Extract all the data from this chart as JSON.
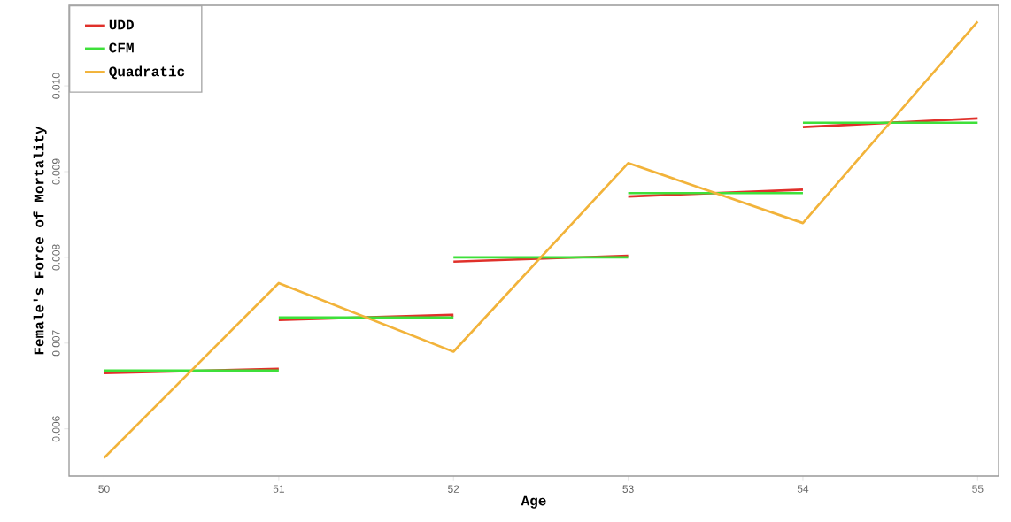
{
  "chart_data": {
    "type": "line",
    "xlabel": "Age",
    "ylabel": "Female's Force of Mortality",
    "xlim": [
      49.8,
      55.12
    ],
    "ylim": [
      0.00545,
      0.01094
    ],
    "xticks": [
      50,
      51,
      52,
      53,
      54,
      55
    ],
    "yticks": [
      {
        "value": 0.006,
        "label": "0.006"
      },
      {
        "value": 0.007,
        "label": "0.007"
      },
      {
        "value": 0.008,
        "label": "0.008"
      },
      {
        "value": 0.009,
        "label": "0.009"
      },
      {
        "value": 0.01,
        "label": "0.010"
      }
    ],
    "legend": "top left",
    "grid": false,
    "marker": "none",
    "line_style": "solid",
    "series": [
      {
        "name": "UDD",
        "color": "#e0302a",
        "x": [
          50,
          51
        ],
        "values": [
          0.00665,
          0.0067
        ]
      },
      {
        "color": "#e0302a",
        "x": [
          51,
          52
        ],
        "values": [
          0.00727,
          0.00733
        ]
      },
      {
        "color": "#e0302a",
        "x": [
          52,
          53
        ],
        "values": [
          0.00795,
          0.00802
        ]
      },
      {
        "color": "#e0302a",
        "x": [
          53,
          54
        ],
        "values": [
          0.00871,
          0.00879
        ]
      },
      {
        "color": "#e0302a",
        "x": [
          54,
          55
        ],
        "values": [
          0.00952,
          0.00962
        ]
      },
      {
        "name": "CFM",
        "color": "#3ee03a",
        "x": [
          50,
          51
        ],
        "values": [
          0.00668,
          0.00668
        ]
      },
      {
        "color": "#3ee03a",
        "x": [
          51,
          52
        ],
        "values": [
          0.0073,
          0.0073
        ]
      },
      {
        "color": "#3ee03a",
        "x": [
          52,
          53
        ],
        "values": [
          0.008,
          0.008
        ]
      },
      {
        "color": "#3ee03a",
        "x": [
          53,
          54
        ],
        "values": [
          0.00875,
          0.00875
        ]
      },
      {
        "color": "#3ee03a",
        "x": [
          54,
          55
        ],
        "values": [
          0.00957,
          0.00957
        ]
      },
      {
        "name": "Quadratic",
        "color": "#f2b33a",
        "x": [
          50,
          51,
          52,
          53,
          54,
          55
        ],
        "values": [
          0.00566,
          0.0077,
          0.0069,
          0.0091,
          0.0084,
          0.01075
        ]
      }
    ]
  }
}
